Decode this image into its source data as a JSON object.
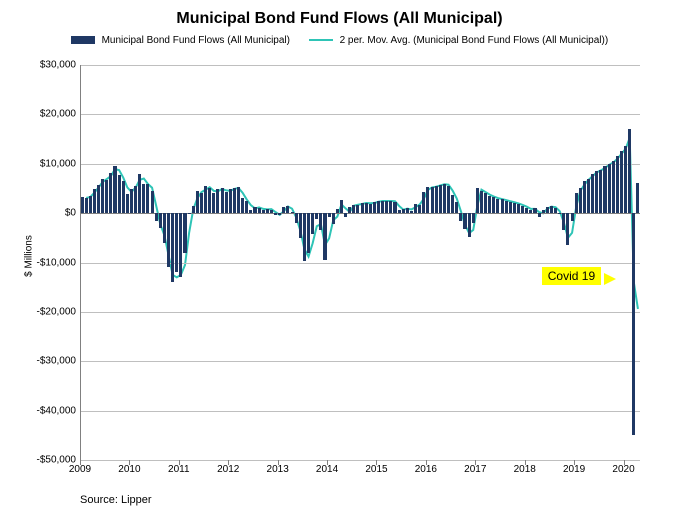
{
  "chart": {
    "type": "bar+line",
    "title": "Municipal Bond Fund Flows (All Municipal)",
    "background_color": "#ffffff",
    "grid_color": "#bfbfbf",
    "title_fontsize": 16,
    "label_fontsize": 10,
    "legend": {
      "bar_label": "Municipal Bond Fund Flows (All Municipal)",
      "line_label": "2 per. Mov. Avg. (Municipal Bond Fund Flows (All Municipal))",
      "bar_color": "#1f3864",
      "line_color": "#2ec4b6"
    },
    "ylabel": "$ Millions",
    "ylim": [
      -50000,
      30000
    ],
    "yticks": [
      -50000,
      -40000,
      -30000,
      -20000,
      -10000,
      0,
      10000,
      20000,
      30000
    ],
    "ytick_labels": [
      "-$50,000",
      "-$40,000",
      "-$30,000",
      "-$20,000",
      "-$10,000",
      "$0",
      "$10,000",
      "$20,000",
      "$30,000"
    ],
    "xyears": [
      2009,
      2010,
      2011,
      2012,
      2013,
      2014,
      2015,
      2016,
      2017,
      2018,
      2019,
      2020
    ],
    "bar_values": [
      3200,
      3000,
      3500,
      4800,
      5600,
      7000,
      6800,
      8200,
      9600,
      7800,
      6600,
      3800,
      4800,
      5500,
      8000,
      6000,
      5800,
      4500,
      -1500,
      -3000,
      -6000,
      -11000,
      -14000,
      -12000,
      -13000,
      -8000,
      0,
      1500,
      4500,
      4000,
      5500,
      5000,
      4000,
      4800,
      5000,
      4200,
      4800,
      5000,
      5200,
      3000,
      2500,
      700,
      1200,
      1100,
      600,
      900,
      700,
      -300,
      -400,
      1200,
      1500,
      300,
      -2000,
      -5000,
      -9600,
      -8000,
      -4200,
      -1100,
      -3400,
      -9500,
      -700,
      -2200,
      800,
      2700,
      -800,
      1300,
      1700,
      1700,
      2000,
      2100,
      1900,
      2200,
      2400,
      2500,
      2400,
      2500,
      2300,
      600,
      800,
      1000,
      500,
      1900,
      1600,
      4200,
      5200,
      5200,
      5500,
      5700,
      6000,
      5500,
      3600,
      2300,
      -1500,
      -3300,
      -4800,
      -2000,
      5000,
      4500,
      4000,
      3500,
      3200,
      2900,
      2800,
      2500,
      2300,
      2100,
      1800,
      1500,
      1100,
      600,
      1100,
      -700,
      600,
      1200,
      1400,
      1000,
      -200,
      -3500,
      -6500,
      -1500,
      4000,
      5000,
      6500,
      7000,
      8000,
      8500,
      8800,
      9500,
      10000,
      10500,
      11500,
      12500,
      13500,
      17000,
      -45000,
      6200
    ],
    "callout": {
      "text": "Covid 19",
      "bg": "#ffff00"
    },
    "source": "Source: Lipper"
  }
}
